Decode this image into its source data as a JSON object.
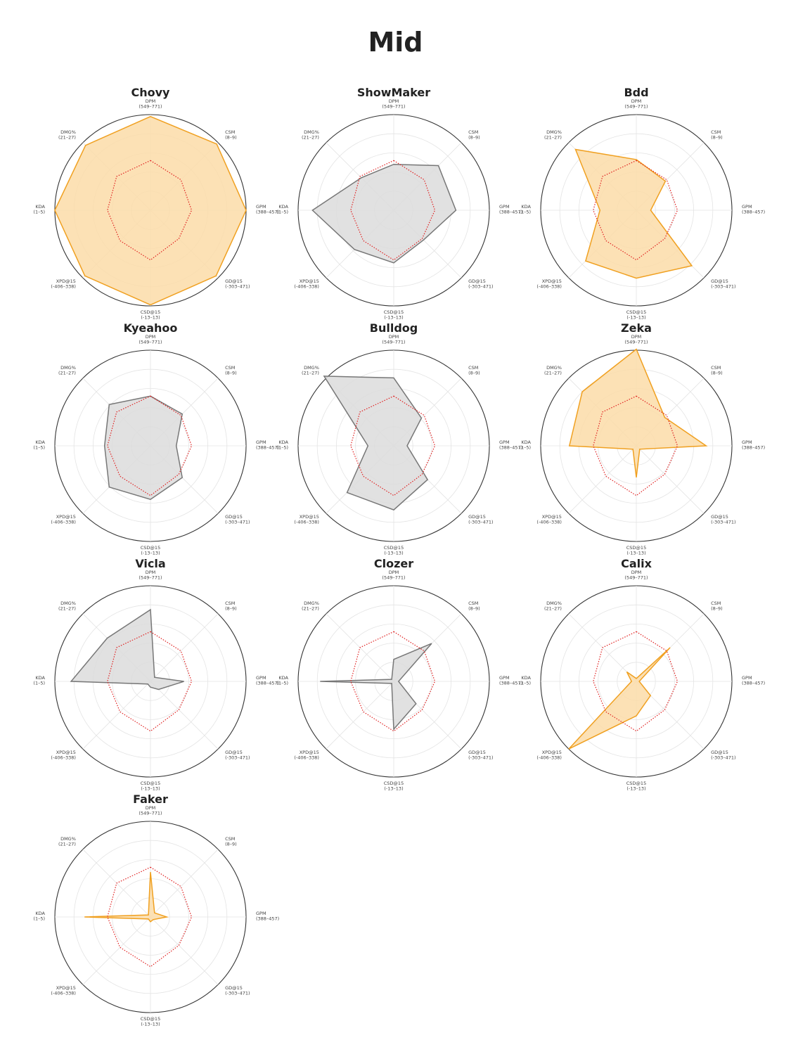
{
  "page": {
    "title": "Mid"
  },
  "colors": {
    "highlight_fill": "#fbdca8",
    "highlight_stroke": "#f0a020",
    "neutral_fill": "#dcdcdc",
    "neutral_stroke": "#777777",
    "average_line": "#e02020",
    "outer_ring": "#333333",
    "grid": "#e4e4e4"
  },
  "chart_data": {
    "type": "radar",
    "scale": [
      0,
      1
    ],
    "grid_levels": [
      0.2,
      0.4,
      0.6,
      0.8,
      1.0
    ],
    "axes": [
      {
        "name": "DPM",
        "range": "(549–771)"
      },
      {
        "name": "CSM",
        "range": "(8–9)"
      },
      {
        "name": "GPM",
        "range": "(388–457)"
      },
      {
        "name": "GD@15",
        "range": "(-303–471)"
      },
      {
        "name": "CSD@15",
        "range": "(-13–13)"
      },
      {
        "name": "XPD@15",
        "range": "(-406–338)"
      },
      {
        "name": "KDA",
        "range": "(1–5)"
      },
      {
        "name": "DMG%",
        "range": "(21–27)"
      }
    ],
    "average": [
      0.52,
      0.45,
      0.43,
      0.42,
      0.52,
      0.45,
      0.45,
      0.5
    ],
    "players": [
      {
        "name": "Chovy",
        "style": "highlight",
        "values": [
          0.98,
          0.98,
          1.0,
          0.97,
          0.99,
          0.97,
          1.0,
          0.96
        ]
      },
      {
        "name": "ShowMaker",
        "style": "neutral",
        "values": [
          0.48,
          0.66,
          0.65,
          0.44,
          0.55,
          0.58,
          0.85,
          0.48
        ]
      },
      {
        "name": "Bdd",
        "style": "highlight",
        "values": [
          0.53,
          0.43,
          0.15,
          0.82,
          0.71,
          0.75,
          0.38,
          0.9
        ]
      },
      {
        "name": "Kyeahoo",
        "style": "neutral",
        "values": [
          0.52,
          0.47,
          0.27,
          0.47,
          0.56,
          0.61,
          0.48,
          0.61
        ]
      },
      {
        "name": "Bulldog",
        "style": "neutral",
        "values": [
          0.71,
          0.41,
          0.14,
          0.5,
          0.67,
          0.69,
          0.27,
          1.03
        ]
      },
      {
        "name": "Zeka",
        "style": "highlight",
        "values": [
          1.01,
          0.42,
          0.73,
          0.05,
          0.33,
          0.05,
          0.7,
          0.8
        ]
      },
      {
        "name": "Vicla",
        "style": "neutral",
        "values": [
          0.75,
          0.06,
          0.35,
          0.12,
          0.06,
          0.04,
          0.83,
          0.64
        ]
      },
      {
        "name": "Clozer",
        "style": "neutral",
        "values": [
          0.23,
          0.56,
          0.05,
          0.33,
          0.5,
          0.03,
          0.77,
          0.03
        ]
      },
      {
        "name": "Calix",
        "style": "highlight",
        "values": [
          0.03,
          0.5,
          0.03,
          0.21,
          0.36,
          1.0,
          0.05,
          0.14
        ]
      },
      {
        "name": "Faker",
        "style": "highlight",
        "values": [
          0.47,
          0.06,
          0.17,
          0.04,
          0.05,
          0.03,
          0.69,
          0.03
        ]
      }
    ]
  }
}
